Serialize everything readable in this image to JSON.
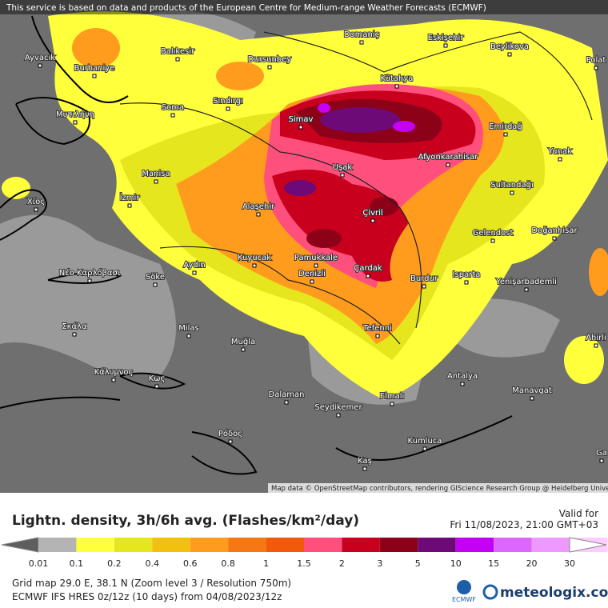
{
  "header": {
    "notice": "This service is based on data and products of the European Centre for Medium-range Weather Forecasts (ECMWF)",
    "attribution": "Map data © OpenStreetMap contributors, rendering GIScience Research Group @ Heidelberg University"
  },
  "cities": [
    "Ayvacık",
    "Burhaniye",
    "Balıkesir",
    "Dursunbey",
    "Domaniç",
    "Eskişehir",
    "Beylikova",
    "Polat",
    "Kütahya",
    "Simav",
    "Sındırgı",
    "Soma",
    "Μυτιλήνη",
    "Emirdağ",
    "Yunak",
    "Afyonkarahisar",
    "Manisa",
    "Uşak",
    "İzmir",
    "Χίος",
    "Alaşehir",
    "Sultandağı",
    "Çivril",
    "Doğanhisar",
    "Gelendost",
    "Νέο Καρλόβασι",
    "Aydın",
    "Kuyucak",
    "Pamukkale",
    "Denizli",
    "Çardak",
    "Burdur",
    "Isparta",
    "Söke",
    "Yenişarbademli",
    "Σκάλα",
    "Milas",
    "Muğla",
    "Tefenni",
    "Ahirli",
    "Κάλυμνος",
    "Κως",
    "Antalya",
    "Manavgat",
    "Dalaman",
    "Elmalı",
    "Seydikemer",
    "Ρόδος",
    "Kumluca",
    "Kaş",
    "Ga"
  ],
  "legend": {
    "title": "Lightn. density, 3h/6h avg. (Flashes/km²/day)",
    "valid_label": "Valid for",
    "valid_time": "Fri 11/08/2023, 21:00 GMT+03",
    "ticks": [
      "0.01",
      "0.1",
      "0.2",
      "0.4",
      "0.6",
      "0.8",
      "1",
      "1.5",
      "2",
      "3",
      "5",
      "10",
      "15",
      "20",
      "30"
    ],
    "colors": [
      "#b4b4b4",
      "#ffff3c",
      "#e6e61e",
      "#f2c00f",
      "#ff9c1e",
      "#f57814",
      "#f05a0a",
      "#ff4f7c",
      "#c8001e",
      "#8c0018",
      "#6e0a78",
      "#c400f5",
      "#dd66ff",
      "#ee99ff",
      "#ffccff"
    ],
    "under_color": "#5e5e5e",
    "over_color": "#ffffff"
  },
  "footer": {
    "grid": "Grid map 29.0 E, 38.1 N (Zoom level 3 / Resolution 750m)",
    "model": "ECMWF IFS HRES 0z/12z (10 days) from 04/08/2023/12z",
    "ecmwf": "ECMWF",
    "brand": "meteologix.com"
  }
}
